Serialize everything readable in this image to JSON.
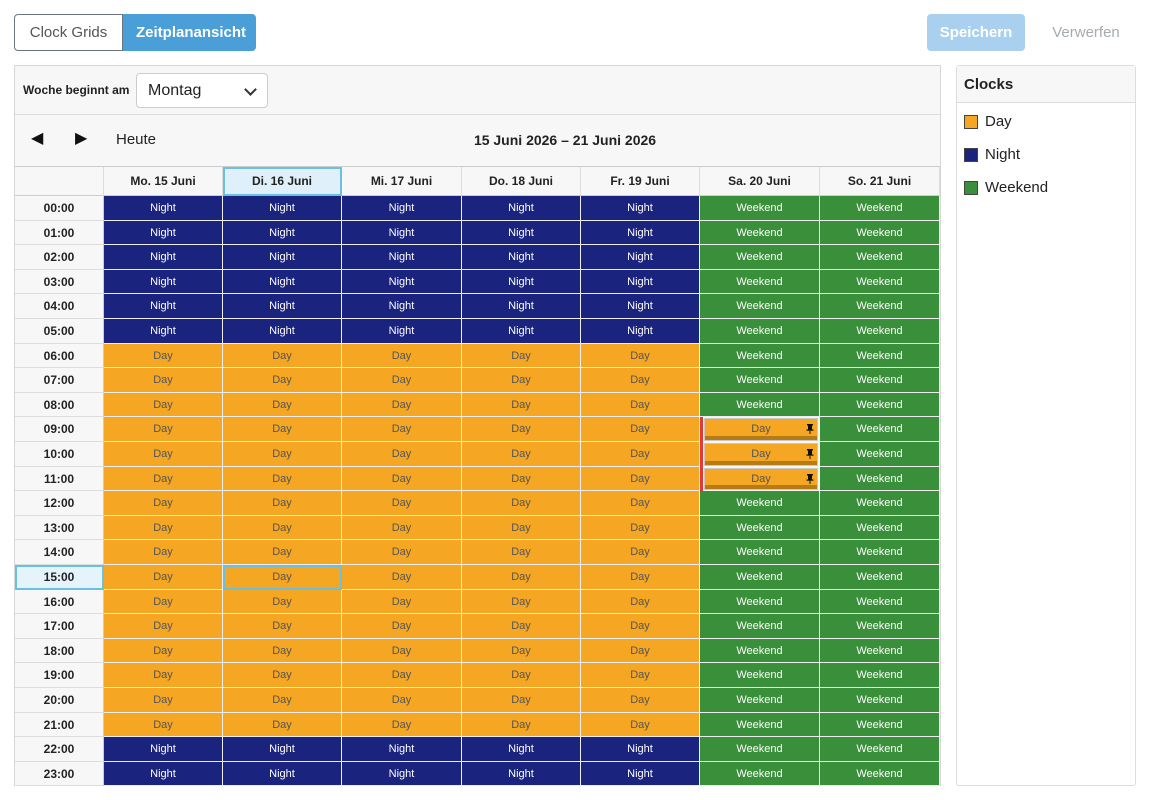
{
  "view_toggle": {
    "clock_grids": "Clock Grids",
    "schedule_view": "Zeitplanansicht"
  },
  "actions": {
    "save": "Speichern",
    "discard": "Verwerfen"
  },
  "week_start": {
    "label": "Woche beginnt am",
    "value": "Montag"
  },
  "nav": {
    "prev": "◀",
    "next": "▶",
    "today": "Heute",
    "range": "15 Juni 2026 – 21 Juni 2026"
  },
  "days": [
    "Mo. 15 Juni",
    "Di. 16 Juni",
    "Mi. 17 Juni",
    "Do. 18 Juni",
    "Fr. 19 Juni",
    "Sa. 20 Juni",
    "So. 21 Juni"
  ],
  "selected_day_index": 1,
  "selected_hour_index": 15,
  "hours": [
    "00:00",
    "01:00",
    "02:00",
    "03:00",
    "04:00",
    "05:00",
    "06:00",
    "07:00",
    "08:00",
    "09:00",
    "10:00",
    "11:00",
    "12:00",
    "13:00",
    "14:00",
    "15:00",
    "16:00",
    "17:00",
    "18:00",
    "19:00",
    "20:00",
    "21:00",
    "22:00",
    "23:00"
  ],
  "schedule": [
    [
      "Night",
      "Night",
      "Night",
      "Night",
      "Night",
      "Weekend",
      "Weekend"
    ],
    [
      "Night",
      "Night",
      "Night",
      "Night",
      "Night",
      "Weekend",
      "Weekend"
    ],
    [
      "Night",
      "Night",
      "Night",
      "Night",
      "Night",
      "Weekend",
      "Weekend"
    ],
    [
      "Night",
      "Night",
      "Night",
      "Night",
      "Night",
      "Weekend",
      "Weekend"
    ],
    [
      "Night",
      "Night",
      "Night",
      "Night",
      "Night",
      "Weekend",
      "Weekend"
    ],
    [
      "Night",
      "Night",
      "Night",
      "Night",
      "Night",
      "Weekend",
      "Weekend"
    ],
    [
      "Day",
      "Day",
      "Day",
      "Day",
      "Day",
      "Weekend",
      "Weekend"
    ],
    [
      "Day",
      "Day",
      "Day",
      "Day",
      "Day",
      "Weekend",
      "Weekend"
    ],
    [
      "Day",
      "Day",
      "Day",
      "Day",
      "Day",
      "Weekend",
      "Weekend"
    ],
    [
      "Day",
      "Day",
      "Day",
      "Day",
      "Day",
      "Day",
      "Weekend"
    ],
    [
      "Day",
      "Day",
      "Day",
      "Day",
      "Day",
      "Day",
      "Weekend"
    ],
    [
      "Day",
      "Day",
      "Day",
      "Day",
      "Day",
      "Day",
      "Weekend"
    ],
    [
      "Day",
      "Day",
      "Day",
      "Day",
      "Day",
      "Weekend",
      "Weekend"
    ],
    [
      "Day",
      "Day",
      "Day",
      "Day",
      "Day",
      "Weekend",
      "Weekend"
    ],
    [
      "Day",
      "Day",
      "Day",
      "Day",
      "Day",
      "Weekend",
      "Weekend"
    ],
    [
      "Day",
      "Day",
      "Day",
      "Day",
      "Day",
      "Weekend",
      "Weekend"
    ],
    [
      "Day",
      "Day",
      "Day",
      "Day",
      "Day",
      "Weekend",
      "Weekend"
    ],
    [
      "Day",
      "Day",
      "Day",
      "Day",
      "Day",
      "Weekend",
      "Weekend"
    ],
    [
      "Day",
      "Day",
      "Day",
      "Day",
      "Day",
      "Weekend",
      "Weekend"
    ],
    [
      "Day",
      "Day",
      "Day",
      "Day",
      "Day",
      "Weekend",
      "Weekend"
    ],
    [
      "Day",
      "Day",
      "Day",
      "Day",
      "Day",
      "Weekend",
      "Weekend"
    ],
    [
      "Day",
      "Day",
      "Day",
      "Day",
      "Day",
      "Weekend",
      "Weekend"
    ],
    [
      "Night",
      "Night",
      "Night",
      "Night",
      "Night",
      "Weekend",
      "Weekend"
    ],
    [
      "Night",
      "Night",
      "Night",
      "Night",
      "Night",
      "Weekend",
      "Weekend"
    ]
  ],
  "overrides": [
    {
      "day_index": 5,
      "hour_index": 9,
      "icon": "pin-icon"
    },
    {
      "day_index": 5,
      "hour_index": 10,
      "icon": "pin-icon"
    },
    {
      "day_index": 5,
      "hour_index": 11,
      "icon": "pin-icon"
    }
  ],
  "clocks": {
    "title": "Clocks",
    "items": [
      {
        "name": "Day",
        "color": "#f5a623"
      },
      {
        "name": "Night",
        "color": "#1a237e"
      },
      {
        "name": "Weekend",
        "color": "#3a8f3a"
      }
    ]
  }
}
